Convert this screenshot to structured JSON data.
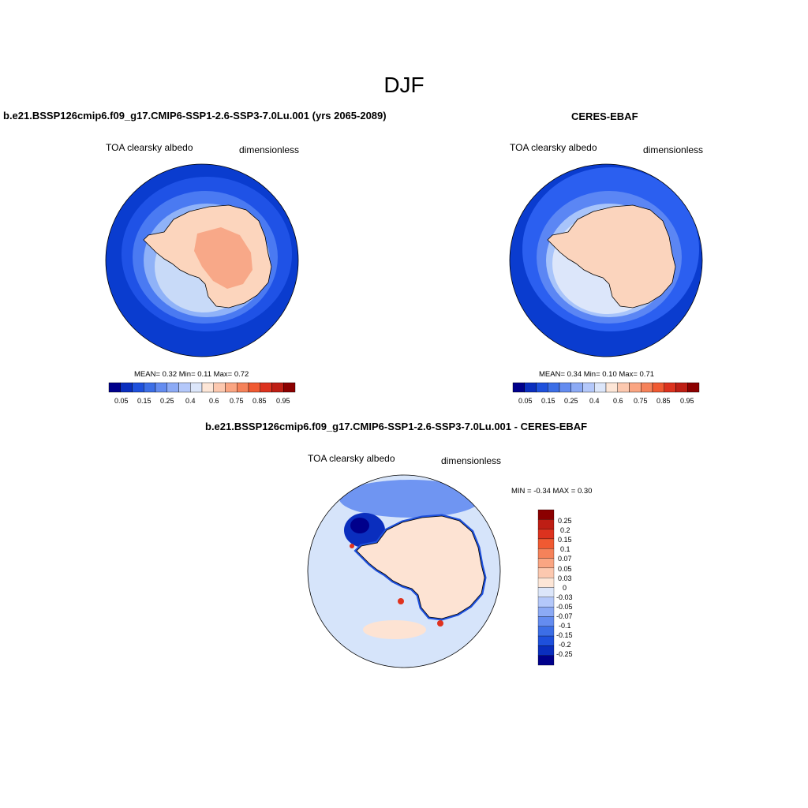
{
  "figure": {
    "title": "DJF"
  },
  "panels": [
    {
      "id": "model",
      "title": "b.e21.BSSP126cmip6.f09_g17.CMIP6-SSP1-2.6-SSP3-7.0Lu.001 (yrs 2065-2089)",
      "left_label": "TOA clearsky albedo",
      "right_label": "dimensionless",
      "stats_text": "MEAN=   0.32  Min=   0.11  Max=   0.72",
      "mean": 0.32,
      "min": 0.11,
      "max": 0.72
    },
    {
      "id": "obs",
      "title": "CERES-EBAF",
      "left_label": "TOA clearsky albedo",
      "right_label": "dimensionless",
      "stats_text": "MEAN=   0.34  Min=   0.10  Max=   0.71",
      "mean": 0.34,
      "min": 0.1,
      "max": 0.71
    },
    {
      "id": "diff",
      "title": "b.e21.BSSP126cmip6.f09_g17.CMIP6-SSP1-2.6-SSP3-7.0Lu.001 - CERES-EBAF",
      "left_label": "TOA clearsky albedo",
      "right_label": "dimensionless",
      "stats_text": "MIN =  -0.34 MAX =   0.30",
      "min": -0.34,
      "max": 0.3
    }
  ],
  "colorbars": {
    "absolute": {
      "ticks": [
        "0.05",
        "0.15",
        "0.25",
        "0.4",
        "0.6",
        "0.75",
        "0.85",
        "0.95"
      ],
      "colors": [
        "#00008b",
        "#0a2ebe",
        "#1e50dc",
        "#3c6ee6",
        "#648cf0",
        "#8caaf5",
        "#b4c8fa",
        "#dce6fa",
        "#fde6d7",
        "#fcc8af",
        "#faa582",
        "#f5825a",
        "#f05a32",
        "#dc321e",
        "#be1e14",
        "#8b0000"
      ]
    },
    "difference": {
      "ticks": [
        "0.25",
        "0.2",
        "0.15",
        "0.1",
        "0.07",
        "0.05",
        "0.03",
        "0",
        "-0.03",
        "-0.05",
        "-0.07",
        "-0.1",
        "-0.15",
        "-0.2",
        "-0.25"
      ],
      "colors": [
        "#8b0000",
        "#be1e14",
        "#dc321e",
        "#f05a32",
        "#f5825a",
        "#faa582",
        "#fcc8af",
        "#fde6d7",
        "#dce6fa",
        "#b4c8fa",
        "#8caaf5",
        "#648cf0",
        "#3c6ee6",
        "#1e50dc",
        "#0a2ebe",
        "#00008b"
      ]
    }
  },
  "colors": {
    "ocean_deep": "#0a3ccf",
    "ocean_mid": "#2b5ff0",
    "ocean_light": "#8fb2f8",
    "sea_ice": "#c8daf8",
    "land_low": "#fcd5bd",
    "land_high": "#f8a888",
    "diff_neutral": "#d6e4fa",
    "diff_pos": "#fde3d3",
    "diff_neg_strong": "#0a2ebe",
    "diff_pos_strong": "#e0321e",
    "coastline": "#000000"
  }
}
